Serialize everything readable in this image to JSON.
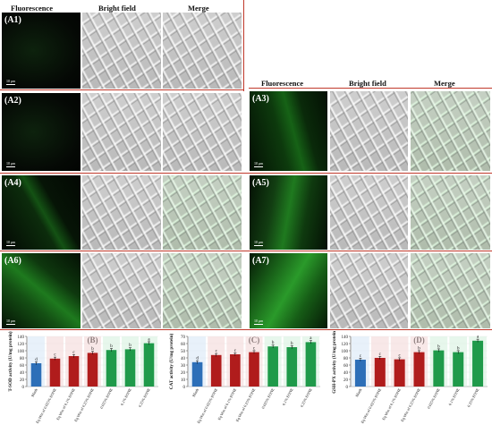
{
  "headers_left": {
    "fluorescence": "Fluorescence",
    "bright_field": "Bright field",
    "merge": "Merge"
  },
  "headers_right": {
    "fluorescence": "Fluorescence",
    "bright_field": "Bright field",
    "merge": "Merge"
  },
  "panels": {
    "A1": "(A1)",
    "A2": "(A2)",
    "A3": "(A3)",
    "A4": "(A4)",
    "A5": "(A5)",
    "A6": "(A6)",
    "A7": "(A7)"
  },
  "scale_bar": "10 μm",
  "colors": {
    "blank": "#2d6fb8",
    "eq": "#b01c1c",
    "eone": "#1f9a4a",
    "rule": "#c0392b"
  },
  "chart_data": [
    {
      "type": "bar",
      "panel": "(B)",
      "ylabel": "T-SOD activity (U/mg protein)",
      "ylim": [
        0,
        140
      ],
      "yticks": [
        0,
        20,
        40,
        60,
        80,
        100,
        120,
        140
      ],
      "categories": [
        "Blank",
        "Eq Wm of 0.025% EONE",
        "Eq Wm of 0.1% EONE",
        "Eq Wm of 0.25% EONE",
        "0.025% EONE",
        "0.1% EONE",
        "0.25% EONE"
      ],
      "values": [
        65,
        78,
        85,
        94,
        102,
        104,
        121
      ],
      "letters": [
        "d",
        "c",
        "c",
        "b",
        "b",
        "b",
        "a"
      ]
    },
    {
      "type": "bar",
      "panel": "(C)",
      "ylabel": "CAT activity (U/mg protein)",
      "ylim": [
        0,
        70
      ],
      "yticks": [
        0,
        10,
        20,
        30,
        40,
        50,
        60,
        70
      ],
      "categories": [
        "Blank",
        "Eq Wm of 0.025% EONE",
        "Eq Wm of 0.1% EONE",
        "Eq Wm of 0.25% EONE",
        "0.025% EONE",
        "0.1% EONE",
        "0.25% EONE"
      ],
      "values": [
        34,
        44,
        45,
        48,
        56,
        55,
        62
      ],
      "letters": [
        "d",
        "c",
        "c",
        "c",
        "b",
        "b",
        "a"
      ]
    },
    {
      "type": "bar",
      "panel": "(D)",
      "ylabel": "GSH-PX activity (U/mg protein)",
      "ylim": [
        0,
        140
      ],
      "yticks": [
        0,
        20,
        40,
        60,
        80,
        100,
        120,
        140
      ],
      "categories": [
        "Blank",
        "Eq Wm of 0.025% EONE",
        "Eq Wm of 0.1% EONE",
        "Eq Wm of 0.25% EONE",
        "0.025% EONE",
        "0.1% EONE",
        "0.25% EONE"
      ],
      "values": [
        75,
        80,
        76,
        96,
        101,
        96,
        128
      ],
      "letters": [
        "c",
        "c",
        "c",
        "b",
        "b",
        "b",
        "a"
      ]
    }
  ]
}
